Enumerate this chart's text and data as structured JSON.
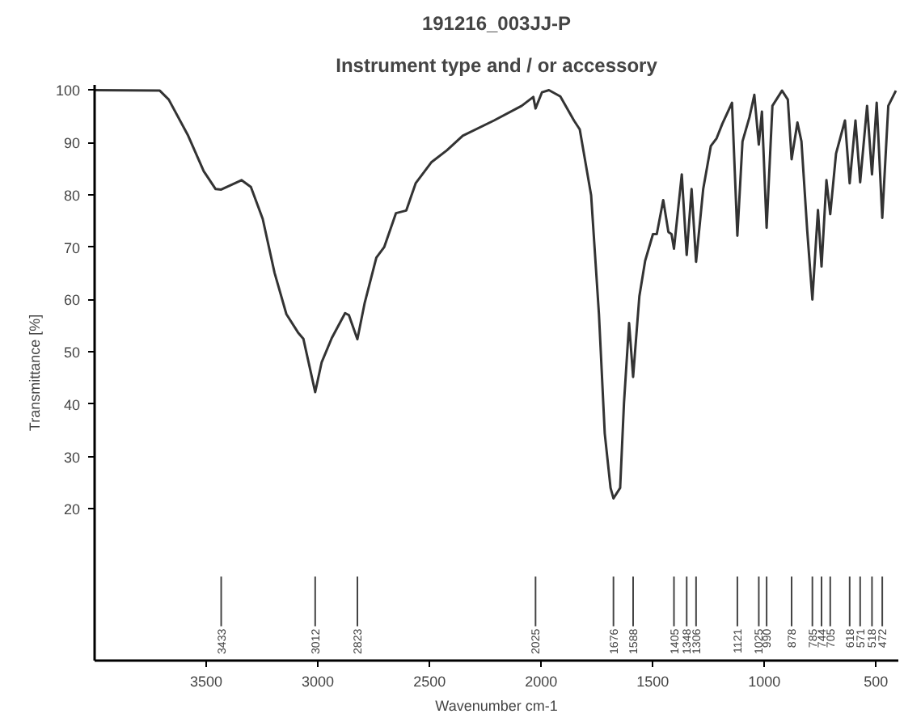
{
  "chart_data": {
    "type": "line",
    "title": "191216_003JJ-P",
    "subtitle": "Instrument type and / or accessory",
    "xlabel": "Wavenumber cm-1",
    "ylabel": "Transmittance [%]",
    "xlim": [
      4000,
      400
    ],
    "ylim": [
      -9,
      101
    ],
    "xticks": [
      3500,
      3000,
      2500,
      2000,
      1500,
      1000,
      500
    ],
    "yticks": [
      20,
      30,
      40,
      50,
      60,
      70,
      80,
      90,
      100
    ],
    "x": [
      4000,
      3708,
      3668,
      3581,
      3511,
      3458,
      3433,
      3342,
      3300,
      3247,
      3194,
      3141,
      3089,
      3065,
      3012,
      2983,
      2938,
      2878,
      2861,
      2823,
      2790,
      2738,
      2703,
      2650,
      2604,
      2562,
      2492,
      2422,
      2351,
      2211,
      2087,
      2035,
      2025,
      1996,
      1965,
      1914,
      1853,
      1827,
      1776,
      1741,
      1715,
      1689,
      1676,
      1646,
      1629,
      1606,
      1588,
      1560,
      1534,
      1499,
      1482,
      1453,
      1430,
      1416,
      1405,
      1370,
      1348,
      1326,
      1306,
      1274,
      1240,
      1214,
      1188,
      1145,
      1121,
      1098,
      1067,
      1045,
      1025,
      1011,
      990,
      964,
      921,
      895,
      878,
      852,
      834,
      808,
      785,
      760,
      744,
      722,
      705,
      679,
      639,
      618,
      592,
      571,
      540,
      518,
      497,
      472,
      445,
      411
    ],
    "series": [
      {
        "color": "#333333",
        "values": [
          100,
          99.9,
          98.2,
          91.3,
          84.5,
          81.1,
          81,
          82.8,
          81.5,
          75.4,
          65.1,
          57.2,
          53.7,
          52.5,
          42.3,
          48,
          52.6,
          57.4,
          57,
          52.4,
          59.4,
          68,
          70,
          76.5,
          77,
          82.2,
          86.2,
          88.5,
          91.3,
          94.2,
          97,
          98.7,
          96.5,
          99.6,
          100,
          98.8,
          94.2,
          92.5,
          79.9,
          57.2,
          34.4,
          24,
          22,
          24,
          40.1,
          55.5,
          45.2,
          60.6,
          67.4,
          72.5,
          72.5,
          79,
          72.9,
          72.5,
          69.7,
          83.9,
          68.5,
          81.1,
          67.2,
          81.1,
          89.3,
          90.8,
          93.6,
          97.6,
          72.2,
          90.2,
          94.8,
          99.1,
          89.6,
          95.9,
          73.7,
          97,
          99.9,
          98.2,
          86.8,
          93.8,
          90.2,
          73.1,
          60,
          77.1,
          66.3,
          82.8,
          76.3,
          87.9,
          94.2,
          82.2,
          94.2,
          82.4,
          97,
          83.9,
          97.6,
          75.6,
          97,
          99.9
        ]
      }
    ],
    "annotations": [
      {
        "text": "3433",
        "x": 3433
      },
      {
        "text": "3012",
        "x": 3012
      },
      {
        "text": "2823",
        "x": 2823
      },
      {
        "text": "2025",
        "x": 2025
      },
      {
        "text": "1676",
        "x": 1676
      },
      {
        "text": "1588",
        "x": 1588
      },
      {
        "text": "1405",
        "x": 1405
      },
      {
        "text": "1348",
        "x": 1348
      },
      {
        "text": "1306",
        "x": 1306
      },
      {
        "text": "1121",
        "x": 1121
      },
      {
        "text": "1025",
        "x": 1025
      },
      {
        "text": "990",
        "x": 990
      },
      {
        "text": "878",
        "x": 878
      },
      {
        "text": "785",
        "x": 785
      },
      {
        "text": "744",
        "x": 744
      },
      {
        "text": "705",
        "x": 705
      },
      {
        "text": "618",
        "x": 618
      },
      {
        "text": "571",
        "x": 571
      },
      {
        "text": "518",
        "x": 518
      },
      {
        "text": "472",
        "x": 472
      }
    ]
  }
}
